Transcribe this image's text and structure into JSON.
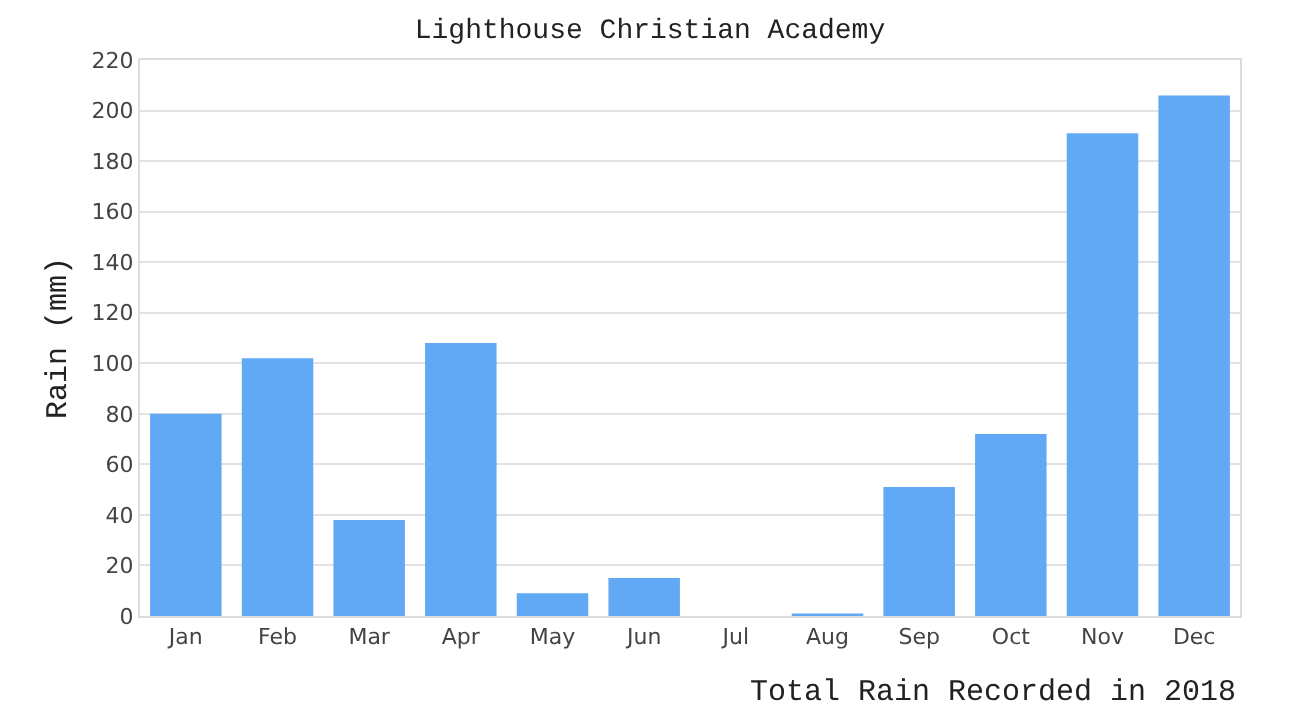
{
  "chart_data": {
    "type": "bar",
    "title": "Lighthouse Christian Academy",
    "ylabel": "Rain (mm)",
    "annotations": [
      "Total Rain Recorded in 2018"
    ],
    "categories": [
      "Jan",
      "Feb",
      "Mar",
      "Apr",
      "May",
      "Jun",
      "Jul",
      "Aug",
      "Sep",
      "Oct",
      "Nov",
      "Dec"
    ],
    "values": [
      80,
      102,
      38,
      108,
      9,
      15,
      0,
      1,
      51,
      72,
      191,
      206
    ],
    "color": "#61a8f5",
    "ylim": [
      0,
      220
    ],
    "yticks": [
      0,
      20,
      40,
      60,
      80,
      100,
      120,
      140,
      160,
      180,
      200,
      220
    ],
    "grid": "y",
    "legend": false
  }
}
